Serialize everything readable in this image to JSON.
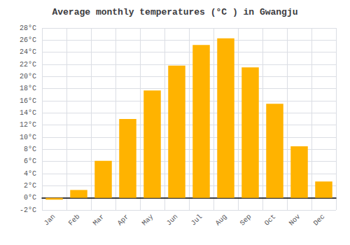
{
  "chart_data": {
    "type": "bar",
    "title": "Average monthly temperatures (°C ) in Gwangju",
    "categories": [
      "Jan",
      "Feb",
      "Mar",
      "Apr",
      "May",
      "Jun",
      "Jul",
      "Aug",
      "Sep",
      "Oct",
      "Nov",
      "Dec"
    ],
    "values": [
      -0.3,
      1.3,
      6.1,
      13.0,
      17.7,
      21.8,
      25.2,
      26.3,
      21.5,
      15.5,
      8.5,
      2.7
    ],
    "color": "#FFB300",
    "ylim": [
      -2,
      28
    ],
    "yticks": [
      {
        "value": -2,
        "label": "-2°C"
      },
      {
        "value": 0,
        "label": "0°C"
      },
      {
        "value": 2,
        "label": "2°C"
      },
      {
        "value": 4,
        "label": "4°C"
      },
      {
        "value": 6,
        "label": "6°C"
      },
      {
        "value": 8,
        "label": "8°C"
      },
      {
        "value": 10,
        "label": "10°C"
      },
      {
        "value": 12,
        "label": "12°C"
      },
      {
        "value": 14,
        "label": "14°C"
      },
      {
        "value": 16,
        "label": "16°C"
      },
      {
        "value": 18,
        "label": "18°C"
      },
      {
        "value": 20,
        "label": "20°C"
      },
      {
        "value": 22,
        "label": "22°C"
      },
      {
        "value": 24,
        "label": "24°C"
      },
      {
        "value": 26,
        "label": "26°C"
      },
      {
        "value": 28,
        "label": "28°C"
      }
    ],
    "grid": true
  }
}
